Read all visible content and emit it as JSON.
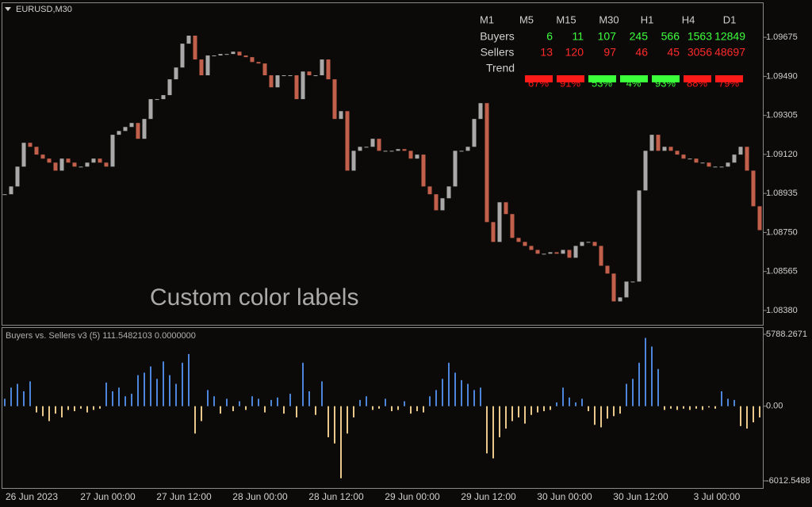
{
  "header": {
    "symbol": "EURUSD,M30"
  },
  "chart_data": [
    {
      "type": "candlestick",
      "annotation": "Custom color labels",
      "values": [
        1.08931,
        1.08968,
        1.09062,
        1.09175,
        1.09156,
        1.09119,
        1.091,
        1.09081,
        1.09043,
        1.091,
        1.09081,
        1.09062,
        1.09062,
        1.09081,
        1.091,
        1.09081,
        1.09062,
        1.09213,
        1.09231,
        1.0925,
        1.09269,
        1.09194,
        1.09288,
        1.09382,
        1.09382,
        1.09401,
        1.09476,
        1.09532,
        1.09645,
        1.09683,
        1.0957,
        1.09495,
        1.09589,
        1.09589,
        1.09596,
        1.09596,
        1.09607,
        1.09589,
        1.09581,
        1.09558,
        1.09551,
        1.09495,
        1.09438,
        1.09495,
        1.09495,
        1.09495,
        1.09382,
        1.09513,
        1.09495,
        1.09495,
        1.0957,
        1.09476,
        1.09288,
        1.09325,
        1.09043,
        1.09137,
        1.09156,
        1.09156,
        1.09194,
        1.09137,
        1.09137,
        1.09137,
        1.09145,
        1.09137,
        1.091,
        1.09119,
        1.08968,
        1.08931,
        1.08855,
        1.08912,
        1.08968,
        1.09137,
        1.09137,
        1.09156,
        1.09288,
        1.09363,
        1.08799,
        1.08705,
        1.08893,
        1.08837,
        1.08724,
        1.08705,
        1.08686,
        1.08667,
        1.08649,
        1.08649,
        1.08656,
        1.08649,
        1.08667,
        1.0863,
        1.08686,
        1.08705,
        1.08705,
        1.08686,
        1.08592,
        1.08555,
        1.08423,
        1.08442,
        1.08517,
        1.08517,
        1.08949,
        1.09137,
        1.09213,
        1.09137,
        1.09156,
        1.09137,
        1.09119,
        1.091,
        1.091,
        1.09081,
        1.09081,
        1.09062,
        1.09062,
        1.09062,
        1.09081,
        1.09119,
        1.09156,
        1.09043,
        1.08874,
        1.08761
      ],
      "up_color": "#a9a9a9",
      "down_color": "#c2604c",
      "ylim": [
        1.08312,
        1.09837
      ],
      "yticks": [
        {
          "value": 1.09675,
          "label": "1.09675"
        },
        {
          "value": 1.0949,
          "label": "1.09490"
        },
        {
          "value": 1.09305,
          "label": "1.09305"
        },
        {
          "value": 1.0912,
          "label": "1.09120"
        },
        {
          "value": 1.08935,
          "label": "1.08935"
        },
        {
          "value": 1.0875,
          "label": "1.08750"
        },
        {
          "value": 1.08565,
          "label": "1.08565"
        },
        {
          "value": 1.0838,
          "label": "1.08380"
        }
      ],
      "time_labels": [
        "26 Jun 2023",
        "27 Jun 00:00",
        "27 Jun 12:00",
        "28 Jun 00:00",
        "28 Jun 12:00",
        "29 Jun 00:00",
        "29 Jun 12:00",
        "30 Jun 00:00",
        "30 Jun 12:00",
        "3 Jul 00:00"
      ]
    },
    {
      "type": "bar",
      "title": "Buyers vs. Sellers v3 (5) 111.5482103 0.0000000",
      "values": [
        600,
        1500,
        1800,
        1200,
        2000,
        -500,
        -800,
        -1200,
        -600,
        -900,
        -300,
        -400,
        -200,
        -500,
        -300,
        -200,
        1900,
        1200,
        1500,
        800,
        1000,
        2500,
        2700,
        3200,
        2200,
        3600,
        2500,
        1800,
        3500,
        4200,
        -2200,
        -1200,
        1300,
        800,
        -600,
        600,
        -400,
        400,
        -300,
        800,
        600,
        -500,
        500,
        700,
        -600,
        1000,
        -900,
        3500,
        1200,
        -700,
        2000,
        -2500,
        -3000,
        -5800,
        -2200,
        -900,
        500,
        800,
        -300,
        -200,
        600,
        -400,
        -300,
        400,
        -600,
        -400,
        -500,
        800,
        1300,
        2200,
        3500,
        2700,
        2100,
        1800,
        1300,
        1500,
        -3800,
        -4200,
        -2500,
        -1800,
        -1200,
        -900,
        -1400,
        -700,
        -500,
        -400,
        -300,
        300,
        1500,
        700,
        300,
        600,
        -400,
        -1500,
        -1700,
        -1000,
        -800,
        -600,
        1800,
        2200,
        3500,
        5500,
        4800,
        3000,
        -300,
        -200,
        -300,
        -200,
        -300,
        -200,
        -300,
        -100,
        -200,
        1200,
        600,
        500,
        -1600,
        -1800,
        -1300,
        -900
      ],
      "up_color": "#4c86d8",
      "down_color": "#e9c98a",
      "ylim": [
        -6650,
        6300
      ],
      "yticks": [
        {
          "value": 5788.2671,
          "label": "5788.2671"
        },
        {
          "value": 0,
          "label": "0.00"
        },
        {
          "value": -6012.5488,
          "label": "-6012.5488"
        }
      ]
    }
  ],
  "panel": {
    "columns": [
      "M1",
      "M5",
      "M15",
      "M30",
      "H1",
      "H4",
      "D1"
    ],
    "buyers_label": "Buyers",
    "buyers": [
      6,
      11,
      107,
      245,
      566,
      1563,
      12849
    ],
    "buyers_color": "#3cff3c",
    "sellers_label": "Sellers",
    "sellers": [
      13,
      120,
      97,
      46,
      45,
      3056,
      48697
    ],
    "sellers_color": "#ff2a2a",
    "trend_label": "Trend",
    "trend": [
      {
        "label": "67%",
        "color": "#ff1a1a"
      },
      {
        "label": "91%",
        "color": "#ff1a1a"
      },
      {
        "label": "53%",
        "color": "#3cff3c"
      },
      {
        "label": "4%",
        "color": "#3cff3c"
      },
      {
        "label": "93%",
        "color": "#3cff3c"
      },
      {
        "label": "88%",
        "color": "#ff1a1a"
      },
      {
        "label": "79%",
        "color": "#ff1a1a"
      }
    ]
  }
}
